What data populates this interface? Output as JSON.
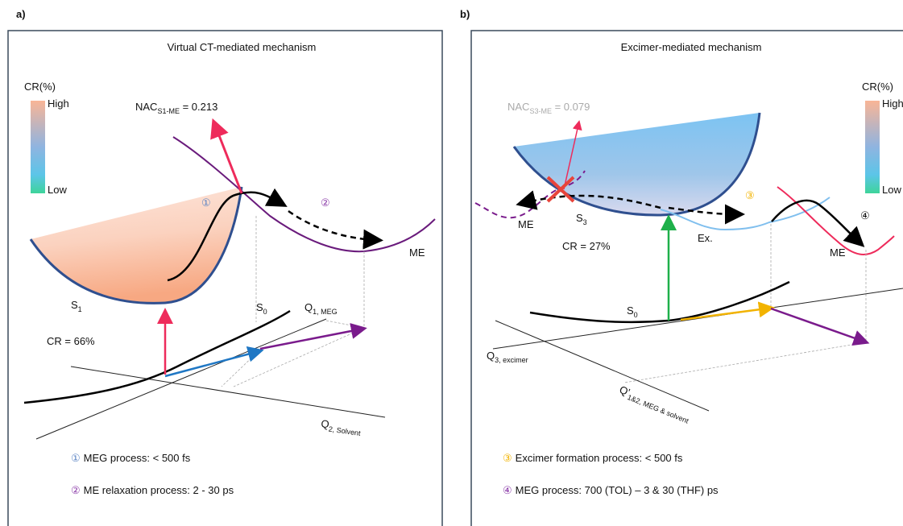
{
  "panel_a": {
    "label": "a)",
    "title": "Virtual CT-mediated mechanism",
    "colorbar": {
      "title": "CR(%)",
      "high": "High",
      "low": "Low"
    },
    "nac": {
      "text": "NAC",
      "sub": "S1-ME",
      "rest": " = 0.213"
    },
    "step_1": "①",
    "step_2": "②",
    "s1": {
      "text": "S",
      "sub": "1"
    },
    "s0": {
      "text": "S",
      "sub": "0"
    },
    "me": "ME",
    "cr": "CR = 66%",
    "q1": {
      "text": "Q",
      "sub": "1, MEG"
    },
    "q2": {
      "text": "Q",
      "sub": "2, Solvent"
    },
    "legend": [
      {
        "marker": "①",
        "text": "MEG process: < 500 fs"
      },
      {
        "marker": "②",
        "text": "ME relaxation process: 2 - 30 ps"
      }
    ]
  },
  "panel_b": {
    "label": "b)",
    "title": "Excimer-mediated mechanism",
    "colorbar": {
      "title": "CR(%)",
      "high": "High",
      "low": "Low"
    },
    "nac": {
      "text": "NAC",
      "sub": "S3-ME",
      "rest": " = 0.079"
    },
    "step_3": "③",
    "step_4": "④",
    "s3": {
      "text": "S",
      "sub": "3"
    },
    "s0": {
      "text": "S",
      "sub": "0"
    },
    "me_left": "ME",
    "me_right": "ME",
    "ex": "Ex.",
    "cr": "CR = 27%",
    "q3": {
      "text": "Q",
      "sub": "3, excimer"
    },
    "q12": {
      "text": "Q'",
      "sub": "1&2, MEG & solvent"
    },
    "legend": [
      {
        "marker": "③",
        "text": "Excimer formation process: < 500 fs"
      },
      {
        "marker": "④",
        "text": "MEG process: 700 (TOL) – 3 & 30 (THF) ps"
      }
    ]
  }
}
